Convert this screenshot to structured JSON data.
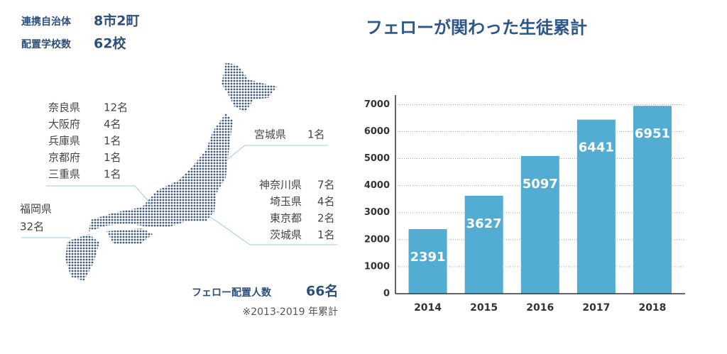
{
  "summary": {
    "municipalities": {
      "label": "連携自治体",
      "value": "8市2町"
    },
    "schools": {
      "label": "配置学校数",
      "value": "62校"
    },
    "fellows": {
      "label": "フェロー配置人数",
      "value": "66名"
    },
    "note": "※2013-2019 年累計"
  },
  "regions": {
    "kansai": [
      {
        "pref": "奈良県",
        "count": "12名"
      },
      {
        "pref": "大阪府",
        "count": "4名"
      },
      {
        "pref": "兵庫県",
        "count": "1名"
      },
      {
        "pref": "京都府",
        "count": "1名"
      },
      {
        "pref": "三重県",
        "count": "1名"
      }
    ],
    "tohoku": [
      {
        "pref": "宮城県",
        "count": "1名"
      }
    ],
    "kanto": [
      {
        "pref": "神奈川県",
        "count": "7名"
      },
      {
        "pref": "埼玉県",
        "count": "4名"
      },
      {
        "pref": "東京都",
        "count": "2名"
      },
      {
        "pref": "茨城県",
        "count": "1名"
      }
    ],
    "kyushu": [
      {
        "pref": "福岡県",
        "count": "32名"
      }
    ]
  },
  "chart_data": {
    "type": "bar",
    "title": "フェローが関わった生徒累計",
    "categories": [
      "2014",
      "2015",
      "2016",
      "2017",
      "2018"
    ],
    "values": [
      2391,
      3627,
      5097,
      6441,
      6951
    ],
    "color": "#53add2",
    "ylim": [
      0,
      7350
    ],
    "yticks": [
      0,
      1000,
      2000,
      3000,
      4000,
      5000,
      6000,
      7000
    ],
    "grid": true
  }
}
